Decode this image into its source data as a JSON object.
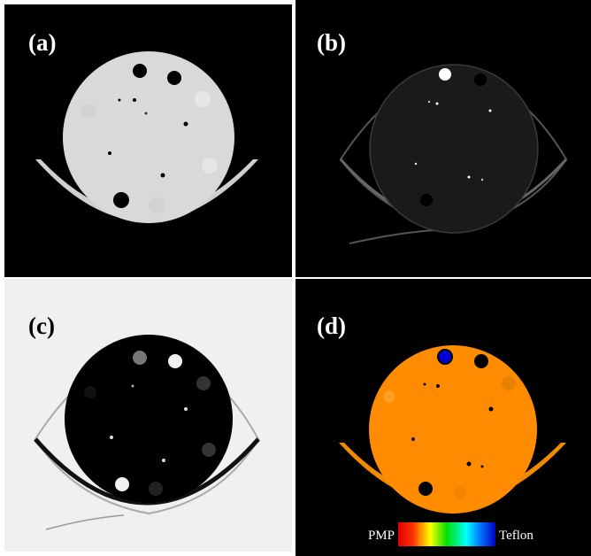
{
  "panels": [
    {
      "label": "(a)"
    },
    {
      "label": "(b)"
    },
    {
      "label": "(c)"
    },
    {
      "label": "(d)"
    }
  ],
  "colorbar": {
    "min_label": "PMP",
    "max_label": "Teflon"
  }
}
